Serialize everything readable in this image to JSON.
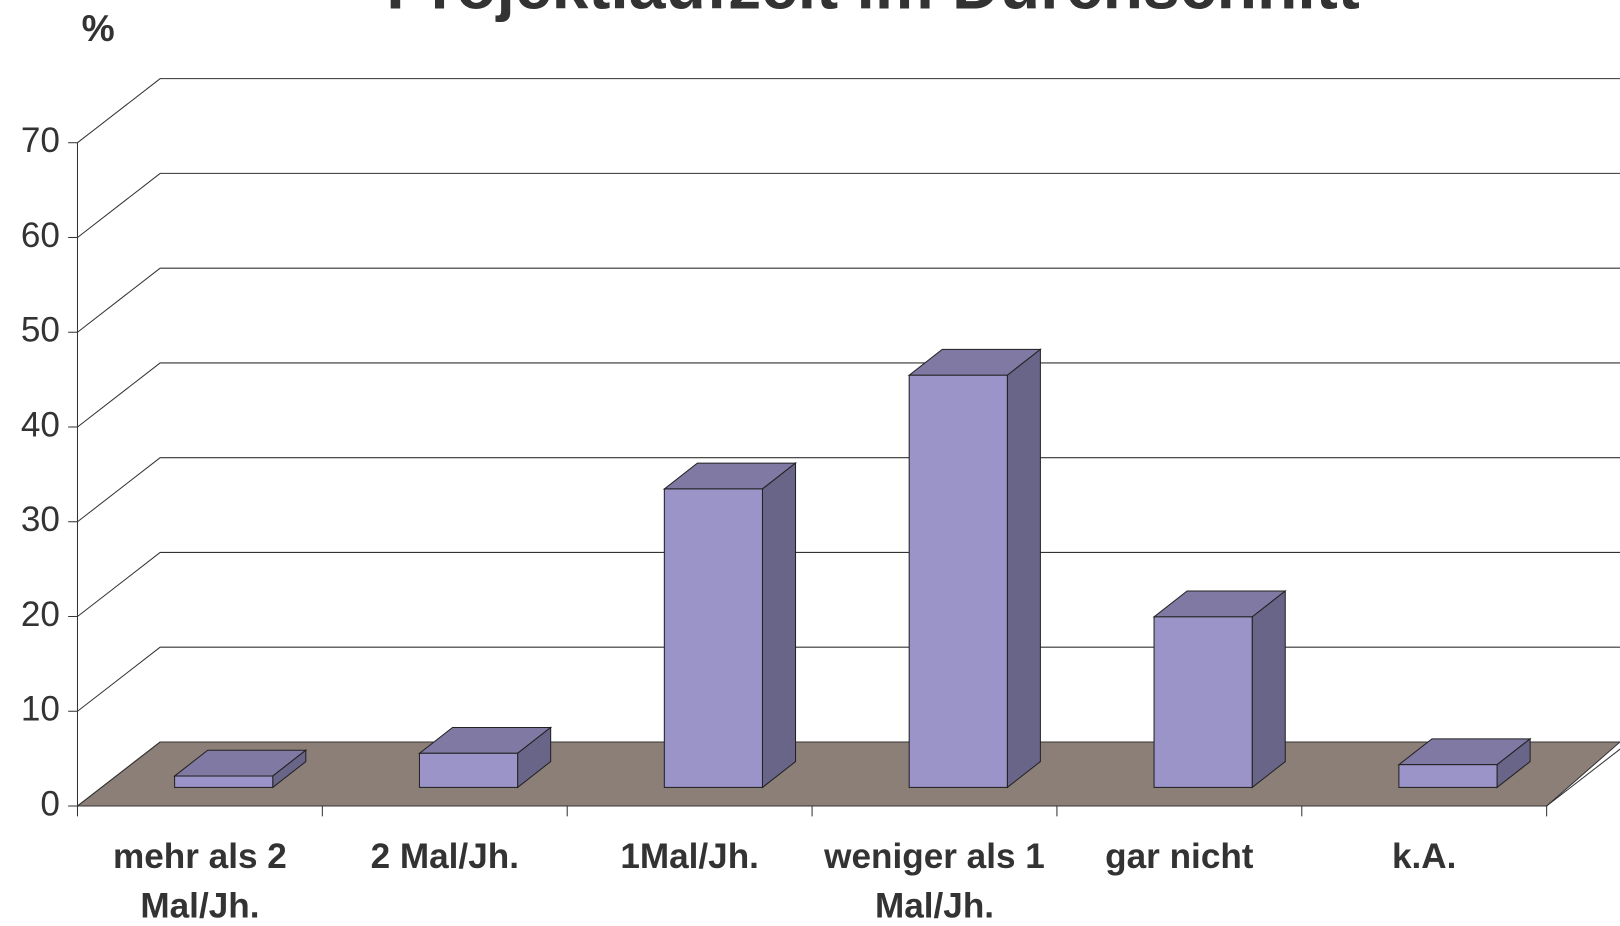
{
  "chart_data": {
    "type": "bar3d",
    "title": "Projektlaufzeit im Durchschnitt",
    "y_label": "%",
    "categories": [
      "mehr als 2 Mal/Jh.",
      "2 Mal/Jh.",
      "1Mal/Jh.",
      "weniger als 1 Mal/Jh.",
      "gar nicht",
      "k.A."
    ],
    "values": [
      1.2,
      3.6,
      31.5,
      43.5,
      18,
      2.4
    ],
    "color": "#9b94c8",
    "floor_color": "#8c7f78",
    "ylim": [
      0,
      70
    ],
    "yticks": [
      0,
      10,
      20,
      30,
      40,
      50,
      60,
      70
    ],
    "grid": true
  }
}
